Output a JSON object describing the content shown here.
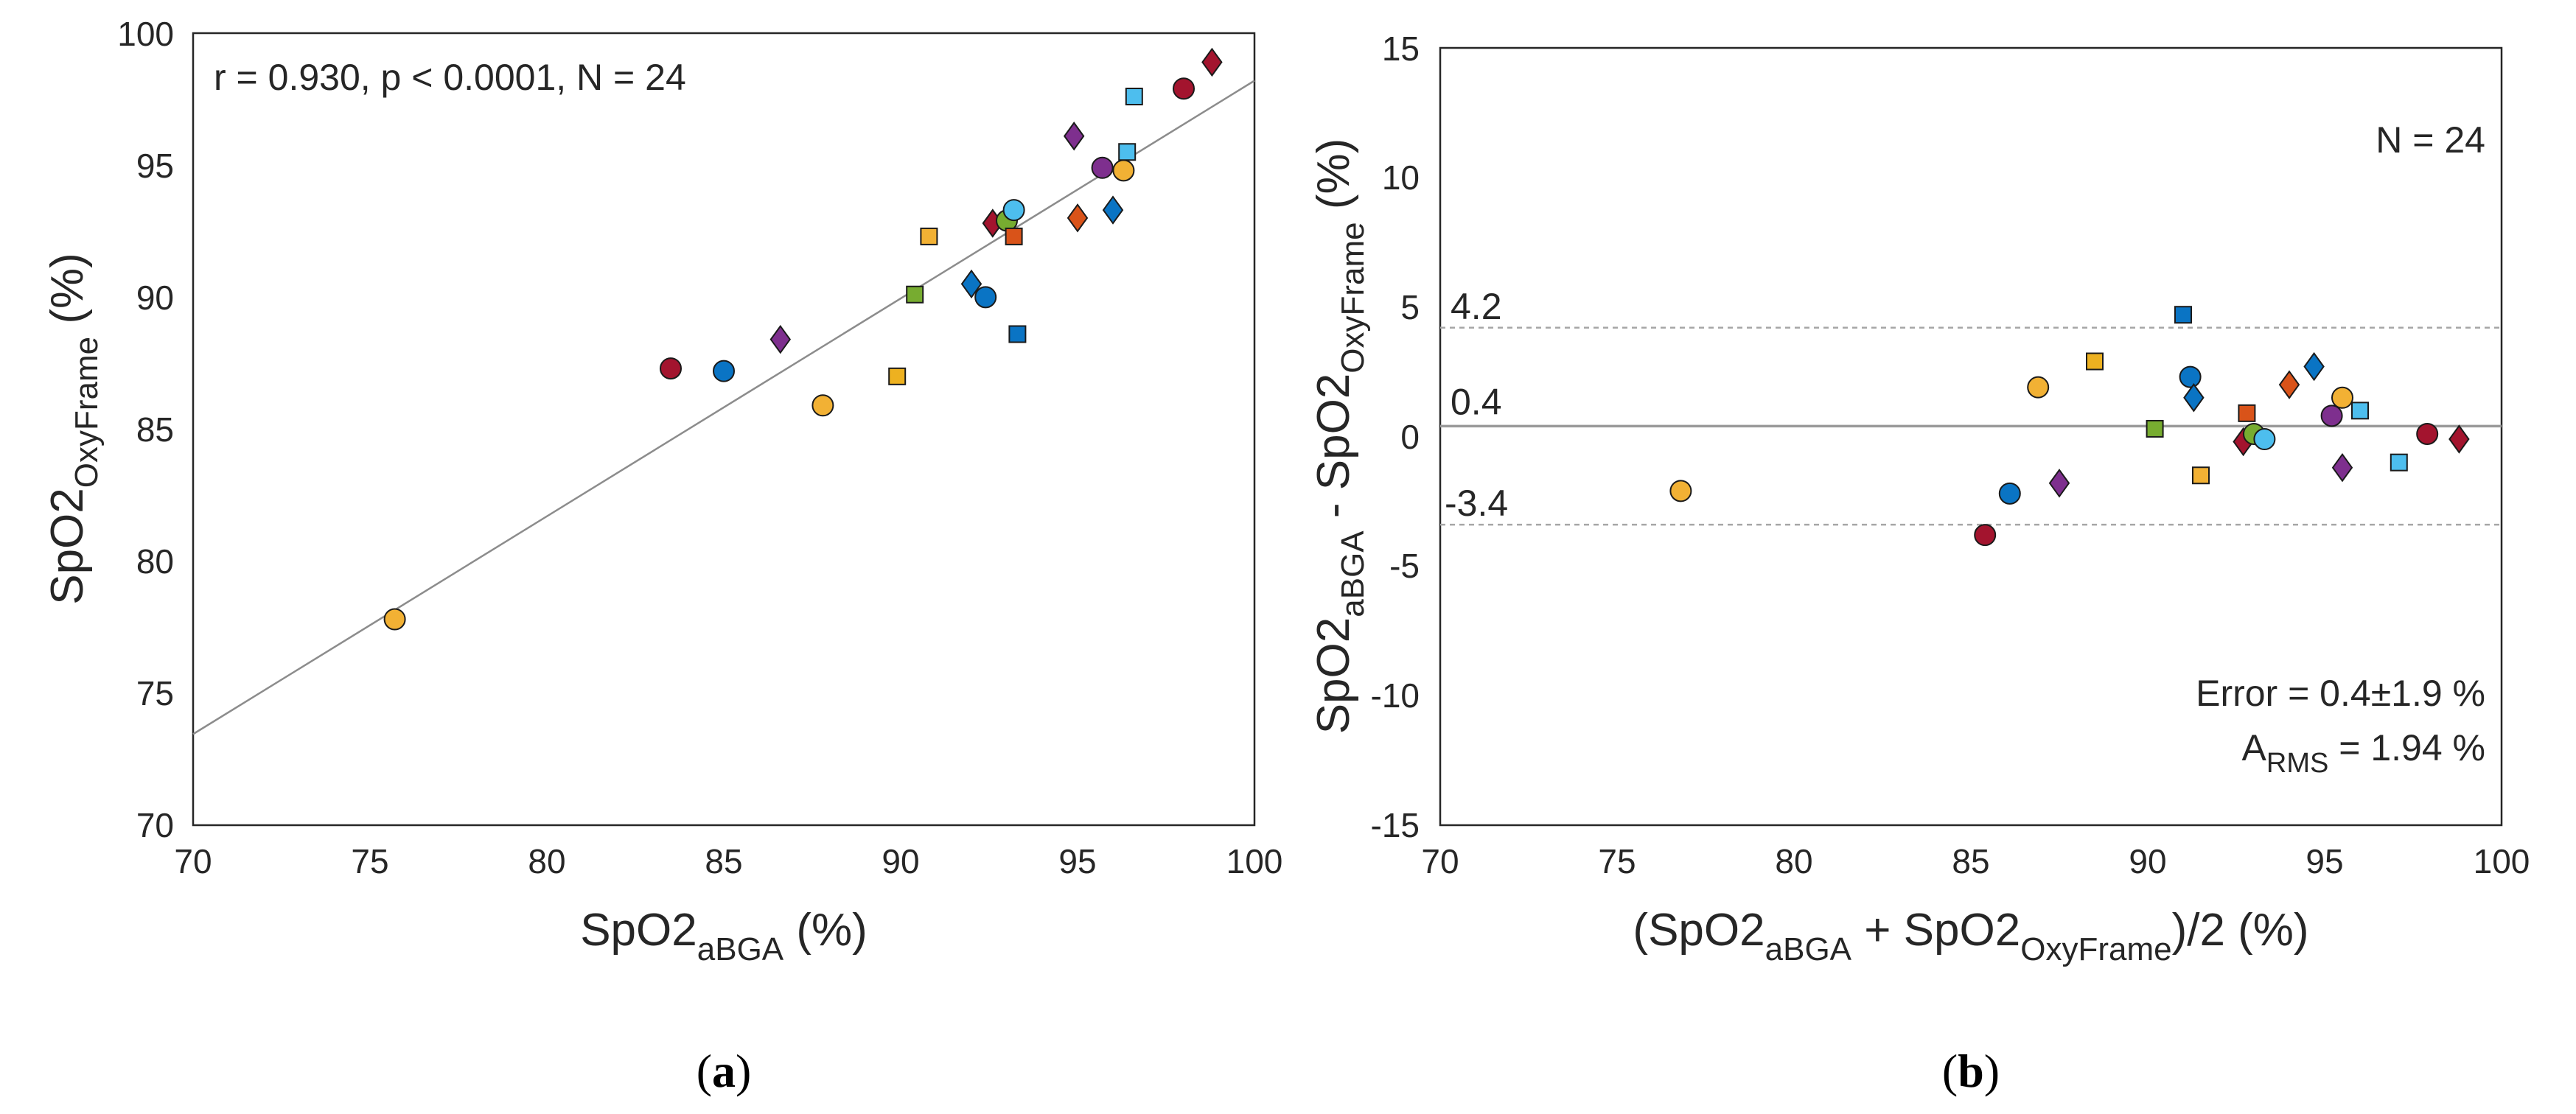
{
  "colors": {
    "yellow": "#F2B134",
    "blue": "#0A74C4",
    "red": "#A3142E",
    "purple": "#7E2F8E",
    "orange": "#D95319",
    "green": "#77AC30",
    "lightblue": "#4DBEEE",
    "darkorange": "#EDB120"
  },
  "chart_data": [
    {
      "type": "scatter",
      "panel_label": "a",
      "xlabel_main": "SpO2",
      "xlabel_sub": "aBGA",
      "xlabel_tail": " (%)",
      "ylabel_main": "SpO2",
      "ylabel_sub": "OxyFrame",
      "ylabel_tail": " (%)",
      "xlim": [
        70,
        100
      ],
      "ylim": [
        70,
        100
      ],
      "xticks": [
        "70",
        "75",
        "80",
        "85",
        "90",
        "95",
        "100"
      ],
      "yticks": [
        "70",
        "75",
        "80",
        "85",
        "90",
        "95",
        "100"
      ],
      "annotation": "r = 0.930, p < 0.0001, N = 24",
      "fit_line": {
        "slope": 0.825,
        "intercept": 15.7
      },
      "points": [
        {
          "x": 75.7,
          "y": 77.8,
          "shape": "circle",
          "color": "yellow"
        },
        {
          "x": 83.5,
          "y": 87.3,
          "shape": "circle",
          "color": "red"
        },
        {
          "x": 85.0,
          "y": 87.2,
          "shape": "circle",
          "color": "blue"
        },
        {
          "x": 86.6,
          "y": 88.4,
          "shape": "diamond",
          "color": "purple"
        },
        {
          "x": 87.8,
          "y": 85.9,
          "shape": "circle",
          "color": "yellow"
        },
        {
          "x": 89.9,
          "y": 87.0,
          "shape": "square",
          "color": "darkorange"
        },
        {
          "x": 90.4,
          "y": 90.1,
          "shape": "square",
          "color": "green"
        },
        {
          "x": 90.8,
          "y": 92.3,
          "shape": "square",
          "color": "yellow"
        },
        {
          "x": 92.0,
          "y": 90.5,
          "shape": "diamond",
          "color": "blue"
        },
        {
          "x": 92.4,
          "y": 90.0,
          "shape": "circle",
          "color": "blue"
        },
        {
          "x": 92.6,
          "y": 92.8,
          "shape": "diamond",
          "color": "red"
        },
        {
          "x": 93.0,
          "y": 92.9,
          "shape": "circle",
          "color": "green"
        },
        {
          "x": 93.2,
          "y": 93.3,
          "shape": "circle",
          "color": "lightblue"
        },
        {
          "x": 93.2,
          "y": 92.3,
          "shape": "square",
          "color": "orange"
        },
        {
          "x": 93.3,
          "y": 88.6,
          "shape": "square",
          "color": "blue"
        },
        {
          "x": 94.9,
          "y": 96.1,
          "shape": "diamond",
          "color": "purple"
        },
        {
          "x": 95.0,
          "y": 93.0,
          "shape": "diamond",
          "color": "orange"
        },
        {
          "x": 95.7,
          "y": 94.9,
          "shape": "circle",
          "color": "purple"
        },
        {
          "x": 96.0,
          "y": 93.3,
          "shape": "diamond",
          "color": "blue"
        },
        {
          "x": 96.3,
          "y": 94.8,
          "shape": "circle",
          "color": "yellow"
        },
        {
          "x": 96.4,
          "y": 95.5,
          "shape": "square",
          "color": "lightblue"
        },
        {
          "x": 96.6,
          "y": 97.6,
          "shape": "square",
          "color": "lightblue"
        },
        {
          "x": 98.0,
          "y": 97.9,
          "shape": "circle",
          "color": "red"
        },
        {
          "x": 98.8,
          "y": 98.9,
          "shape": "diamond",
          "color": "red"
        }
      ]
    },
    {
      "type": "scatter",
      "panel_label": "b",
      "xlabel_pre": "(SpO2",
      "xlabel_sub1": "aBGA",
      "xlabel_mid": " + SpO2",
      "xlabel_sub2": "OxyFrame",
      "xlabel_tail": ")/2 (%)",
      "ylabel_main1": "SpO2",
      "ylabel_sub1": "aBGA",
      "ylabel_mid": " - SpO2",
      "ylabel_sub2": "OxyFrame",
      "ylabel_tail": " (%)",
      "xlim": [
        70,
        100
      ],
      "ylim": [
        -15,
        15
      ],
      "xticks": [
        "70",
        "75",
        "80",
        "85",
        "90",
        "95",
        "100"
      ],
      "yticks": [
        "-15",
        "-10",
        "-5",
        "0",
        "5",
        "10",
        "15"
      ],
      "mean_bias": 0.4,
      "upper_loa": 4.2,
      "lower_loa": -3.4,
      "mean_label": "0.4",
      "upper_label": "4.2",
      "lower_label": "-3.4",
      "annotation_n": "N = 24",
      "annotation_error": "Error = 0.4±1.9 %",
      "annotation_arms_main": "A",
      "annotation_arms_sub": "RMS",
      "annotation_arms_tail": " = 1.94 %",
      "points": [
        {
          "x": 76.8,
          "y": -2.1,
          "shape": "circle",
          "color": "yellow"
        },
        {
          "x": 85.4,
          "y": -3.8,
          "shape": "circle",
          "color": "red"
        },
        {
          "x": 86.1,
          "y": -2.2,
          "shape": "circle",
          "color": "blue"
        },
        {
          "x": 86.9,
          "y": 1.9,
          "shape": "circle",
          "color": "yellow"
        },
        {
          "x": 87.5,
          "y": -1.8,
          "shape": "diamond",
          "color": "purple"
        },
        {
          "x": 88.5,
          "y": 2.9,
          "shape": "square",
          "color": "darkorange"
        },
        {
          "x": 90.2,
          "y": 0.3,
          "shape": "square",
          "color": "green"
        },
        {
          "x": 91.0,
          "y": 4.7,
          "shape": "square",
          "color": "blue"
        },
        {
          "x": 91.2,
          "y": 2.3,
          "shape": "circle",
          "color": "blue"
        },
        {
          "x": 91.3,
          "y": 1.5,
          "shape": "diamond",
          "color": "blue"
        },
        {
          "x": 91.5,
          "y": -1.5,
          "shape": "square",
          "color": "yellow"
        },
        {
          "x": 92.7,
          "y": -0.2,
          "shape": "diamond",
          "color": "red"
        },
        {
          "x": 92.8,
          "y": 0.9,
          "shape": "square",
          "color": "orange"
        },
        {
          "x": 93.0,
          "y": 0.1,
          "shape": "circle",
          "color": "green"
        },
        {
          "x": 93.3,
          "y": -0.1,
          "shape": "circle",
          "color": "lightblue"
        },
        {
          "x": 94.0,
          "y": 2.0,
          "shape": "diamond",
          "color": "orange"
        },
        {
          "x": 94.7,
          "y": 2.7,
          "shape": "diamond",
          "color": "blue"
        },
        {
          "x": 95.2,
          "y": 0.8,
          "shape": "circle",
          "color": "purple"
        },
        {
          "x": 95.5,
          "y": -1.2,
          "shape": "diamond",
          "color": "purple"
        },
        {
          "x": 95.5,
          "y": 1.5,
          "shape": "circle",
          "color": "yellow"
        },
        {
          "x": 96.0,
          "y": 1.0,
          "shape": "square",
          "color": "lightblue"
        },
        {
          "x": 97.1,
          "y": -1.0,
          "shape": "square",
          "color": "lightblue"
        },
        {
          "x": 97.9,
          "y": 0.1,
          "shape": "circle",
          "color": "red"
        },
        {
          "x": 98.8,
          "y": -0.1,
          "shape": "diamond",
          "color": "red"
        }
      ]
    }
  ]
}
